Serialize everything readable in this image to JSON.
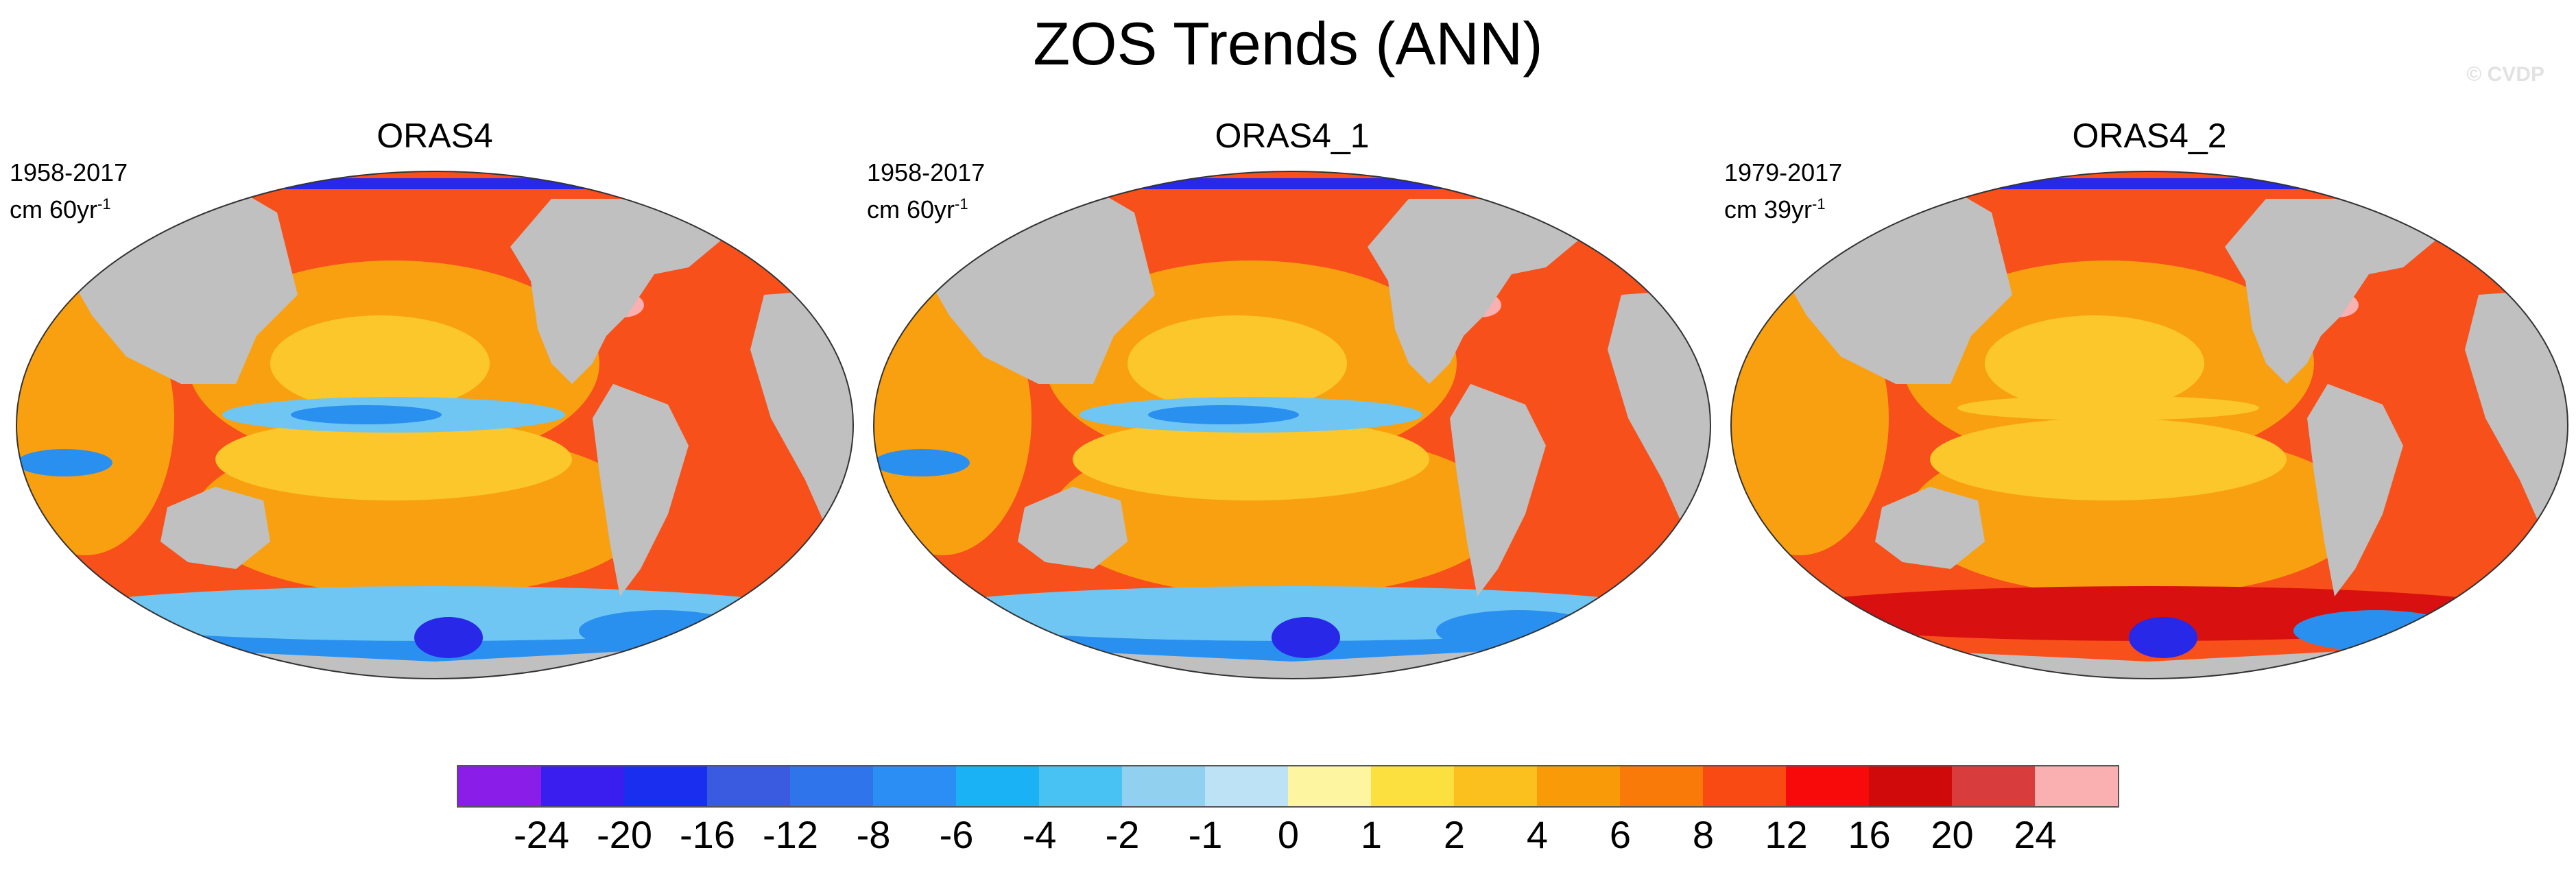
{
  "title": "ZOS Trends (ANN)",
  "copyright": "© CVDP",
  "panels": [
    {
      "title": "ORAS4",
      "period": "1958-2017",
      "units_base": "cm 60yr",
      "units_exp": "-1",
      "variant": 0
    },
    {
      "title": "ORAS4_1",
      "period": "1958-2017",
      "units_base": "cm 60yr",
      "units_exp": "-1",
      "variant": 0
    },
    {
      "title": "ORAS4_2",
      "period": "1979-2017",
      "units_base": "cm 39yr",
      "units_exp": "-1",
      "variant": 1
    }
  ],
  "colorbar": {
    "colors": [
      "#8a1ee8",
      "#3a1ef0",
      "#1a2ef0",
      "#3a5ae0",
      "#2f74ea",
      "#2a8ef5",
      "#1ab2f5",
      "#48c2f2",
      "#92d0f0",
      "#bde2f5",
      "#fdf5a0",
      "#fce040",
      "#fbc01e",
      "#f99a08",
      "#f97a08",
      "#f94a14",
      "#f90a0a",
      "#d00a0a",
      "#d83c3c",
      "#fab0b0"
    ],
    "labels": [
      "-24",
      "-20",
      "-16",
      "-12",
      "-8",
      "-6",
      "-4",
      "-2",
      "-1",
      "0",
      "1",
      "2",
      "4",
      "6",
      "8",
      "12",
      "16",
      "20",
      "24"
    ]
  },
  "map_colors": {
    "land": "#c0c0c0",
    "ocean_warm": "#f7501a",
    "ocean_orange": "#f9a010",
    "ocean_yellow": "#fbc72a",
    "cool_light": "#70c6f2",
    "cool_blue": "#2a90f0",
    "deep_blue": "#2828e8",
    "pink": "#fab0b0",
    "dark_red": "#d81010"
  }
}
